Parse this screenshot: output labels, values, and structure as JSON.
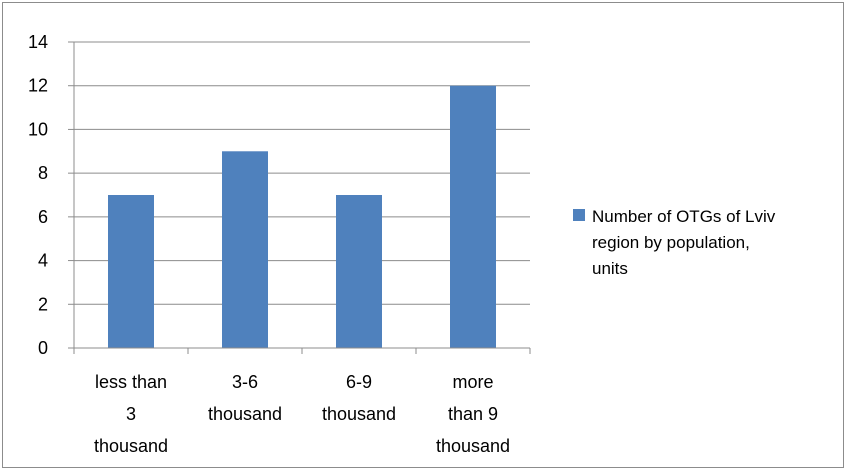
{
  "chart_data": {
    "type": "bar",
    "categories": [
      [
        "less than",
        "3",
        "thousand"
      ],
      [
        "3-6",
        "thousand"
      ],
      [
        "6-9",
        "thousand"
      ],
      [
        "more",
        "than 9",
        "thousand"
      ]
    ],
    "series": [
      {
        "name": [
          "Number of OTGs of Lviv",
          "region by population,",
          "units"
        ],
        "values": [
          7,
          9,
          7,
          12
        ],
        "color": "#4f81bd"
      }
    ],
    "ylim": [
      0,
      14
    ],
    "yticks": [
      "0",
      "2",
      "4",
      "6",
      "8",
      "10",
      "12",
      "14"
    ],
    "grid": true,
    "legend": "right"
  }
}
